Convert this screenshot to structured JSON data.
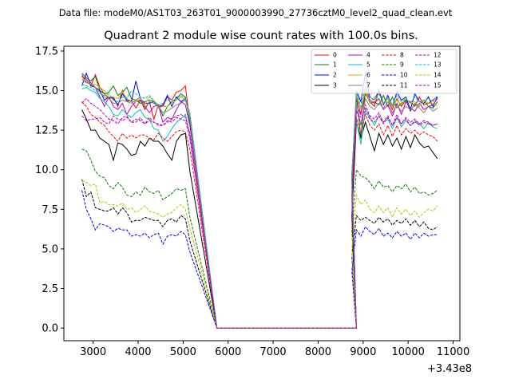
{
  "header": {
    "data_file": "Data file: modeM0/AS1T03_263T01_9000003990_27736cztM0_level2_quad_clean.evt",
    "title": "Quadrant 2 module wise count rates with 100.0s bins."
  },
  "chart_data": {
    "type": "line",
    "title": "Quadrant 2 module wise count rates with 100.0s bins.",
    "xlabel": "",
    "ylabel": "",
    "x_offset_label": "+3.43e8",
    "xlim": [
      2350,
      11150
    ],
    "ylim": [
      -0.8,
      17.8
    ],
    "x_ticks": [
      3000,
      4000,
      5000,
      6000,
      7000,
      8000,
      9000,
      10000,
      11000
    ],
    "y_ticks": [
      0.0,
      2.5,
      5.0,
      7.5,
      10.0,
      12.5,
      15.0,
      17.5
    ],
    "y_tick_labels": [
      "0.0",
      "2.5",
      "5.0",
      "7.5",
      "10.0",
      "12.5",
      "15.0",
      "17.5"
    ],
    "grid": false,
    "legend_position": "top-right",
    "x_start": 2750,
    "x_step": 100,
    "gap_start": 5750,
    "gap_end": 8850,
    "x_end": 10650,
    "series": [
      {
        "name": "0",
        "color": "#ff0000",
        "dashed": false,
        "segA": [
          15.9,
          15.7,
          15.3,
          16.0,
          15.2,
          14.8,
          14.5,
          14.6,
          14.0,
          15.0,
          14.3,
          14.4,
          13.9,
          14.4,
          13.8,
          14.3,
          13.2,
          14.1,
          14.0,
          14.6,
          14.4,
          14.9,
          15.0,
          15.3,
          13.0
        ],
        "segB": [
          9.4,
          14.0,
          13.5,
          14.8,
          14.3,
          14.0,
          15.0,
          14.2,
          14.5,
          13.8,
          14.5,
          14.0,
          14.4,
          14.3,
          14.0,
          14.6,
          14.1,
          14.2,
          14.4,
          14.6
        ]
      },
      {
        "name": "1",
        "color": "#008000",
        "dashed": false,
        "segA": [
          16.1,
          15.8,
          15.6,
          15.9,
          15.0,
          14.8,
          14.9,
          15.3,
          14.7,
          14.9,
          15.2,
          14.5,
          14.4,
          14.2,
          14.3,
          14.4,
          14.3,
          14.1,
          13.4,
          14.0,
          14.3,
          14.5,
          14.8,
          14.6,
          13.0
        ],
        "segB": [
          9.8,
          14.6,
          12.1,
          15.0,
          14.2,
          14.3,
          14.1,
          14.7,
          14.0,
          14.6,
          13.9,
          14.2,
          14.4,
          13.7,
          14.2,
          14.0,
          14.4,
          14.0,
          13.9,
          14.3
        ]
      },
      {
        "name": "2",
        "color": "#0000ff",
        "dashed": false,
        "segA": [
          15.3,
          16.1,
          15.3,
          15.2,
          15.0,
          14.4,
          14.6,
          14.5,
          14.1,
          14.8,
          14.4,
          14.3,
          15.6,
          14.5,
          14.2,
          14.2,
          14.3,
          13.9,
          14.1,
          14.7,
          14.0,
          14.6,
          14.3,
          14.5,
          13.2
        ],
        "segB": [
          9.5,
          15.0,
          14.3,
          16.1,
          14.6,
          14.4,
          15.0,
          14.1,
          14.7,
          14.0,
          14.9,
          14.4,
          14.6,
          13.8,
          14.8,
          14.3,
          14.2,
          14.6,
          14.0,
          14.6
        ]
      },
      {
        "name": "3",
        "color": "#000000",
        "dashed": false,
        "segA": [
          13.8,
          13.2,
          12.5,
          12.5,
          12.0,
          11.8,
          11.6,
          10.6,
          11.7,
          11.6,
          11.3,
          10.9,
          11.0,
          11.8,
          11.5,
          12.0,
          11.8,
          11.8,
          11.5,
          11.0,
          10.6,
          11.8,
          12.2,
          12.3,
          9.9
        ],
        "segB": [
          7.1,
          13.0,
          12.0,
          13.0,
          12.1,
          11.2,
          12.3,
          11.6,
          12.2,
          11.5,
          12.0,
          11.3,
          12.1,
          11.4,
          12.2,
          11.7,
          11.4,
          11.5,
          11.1,
          10.7
        ]
      },
      {
        "name": "4",
        "color": "#bf00bf",
        "dashed": false,
        "segA": [
          16.0,
          15.5,
          15.5,
          15.2,
          14.6,
          14.0,
          14.6,
          14.0,
          13.8,
          14.2,
          13.5,
          14.0,
          14.3,
          14.4,
          14.0,
          13.6,
          14.0,
          14.1,
          13.0,
          13.3,
          13.2,
          13.8,
          14.3,
          14.1,
          12.8
        ],
        "segB": [
          9.7,
          14.6,
          13.5,
          15.2,
          14.4,
          14.2,
          14.5,
          13.8,
          14.1,
          13.4,
          14.2,
          13.5,
          14.3,
          13.9,
          13.7,
          14.2,
          13.8,
          14.0,
          14.1,
          14.5
        ]
      },
      {
        "name": "5",
        "color": "#00bfbf",
        "dashed": false,
        "segA": [
          15.1,
          15.2,
          15.0,
          14.9,
          14.5,
          14.3,
          14.0,
          13.5,
          13.4,
          13.8,
          13.5,
          13.3,
          13.6,
          13.8,
          13.3,
          13.2,
          12.6,
          12.5,
          11.8,
          12.1,
          12.6,
          13.0,
          13.2,
          13.5,
          12.2
        ],
        "segB": [
          8.9,
          13.1,
          11.6,
          13.9,
          13.3,
          12.8,
          13.4,
          13.0,
          13.2,
          12.6,
          13.3,
          12.7,
          13.1,
          12.8,
          13.0,
          12.9,
          12.6,
          13.0,
          12.7,
          12.6
        ]
      },
      {
        "name": "6",
        "color": "#bfbf00",
        "dashed": false,
        "segA": [
          15.8,
          15.6,
          15.4,
          15.4,
          15.2,
          15.0,
          14.6,
          14.6,
          14.5,
          14.9,
          14.5,
          14.3,
          14.3,
          14.5,
          14.1,
          14.6,
          14.4,
          13.9,
          14.0,
          14.0,
          14.2,
          14.4,
          14.6,
          14.4,
          13.3
        ],
        "segB": [
          9.6,
          14.8,
          13.8,
          15.0,
          14.2,
          14.6,
          14.4,
          14.2,
          14.5,
          14.0,
          14.4,
          14.1,
          14.5,
          14.2,
          14.3,
          14.0,
          14.4,
          14.2,
          14.2,
          14.0
        ]
      },
      {
        "name": "7",
        "color": "#808080",
        "dashed": false,
        "segA": [
          15.7,
          15.5,
          15.4,
          15.2,
          14.9,
          14.6,
          14.5,
          14.2,
          14.2,
          14.4,
          14.3,
          14.2,
          14.4,
          14.6,
          13.9,
          14.3,
          14.2,
          14.0,
          13.6,
          13.7,
          13.9,
          14.1,
          14.2,
          14.4,
          13.5
        ],
        "segB": [
          9.4,
          14.2,
          12.8,
          14.5,
          14.0,
          13.8,
          14.2,
          13.9,
          14.3,
          13.6,
          14.1,
          13.7,
          14.0,
          13.8,
          14.1,
          13.9,
          13.6,
          14.0,
          13.7,
          13.9
        ]
      },
      {
        "name": "8",
        "color": "#ff0000",
        "dashed": true,
        "segA": [
          14.3,
          14.0,
          13.5,
          13.3,
          13.0,
          12.8,
          12.4,
          12.1,
          11.8,
          12.3,
          12.0,
          12.2,
          12.0,
          12.2,
          12.2,
          12.0,
          11.9,
          12.3,
          12.0,
          11.8,
          12.1,
          12.4,
          12.5,
          12.4,
          11.3
        ],
        "segB": [
          8.1,
          13.3,
          12.3,
          13.5,
          12.8,
          12.5,
          12.9,
          12.2,
          12.8,
          12.1,
          12.8,
          12.2,
          12.6,
          12.3,
          12.5,
          12.2,
          12.4,
          12.2,
          12.1,
          11.8
        ]
      },
      {
        "name": "9",
        "color": "#008000",
        "dashed": true,
        "segA": [
          11.3,
          11.2,
          10.6,
          9.9,
          9.6,
          9.5,
          9.0,
          8.8,
          9.2,
          8.9,
          8.4,
          8.3,
          8.6,
          8.4,
          8.9,
          8.6,
          8.5,
          8.7,
          8.1,
          8.3,
          8.5,
          8.8,
          8.7,
          8.8,
          7.0
        ],
        "segB": [
          6.2,
          10.0,
          9.6,
          9.5,
          9.2,
          8.8,
          9.3,
          8.9,
          9.0,
          8.6,
          9.0,
          8.8,
          9.1,
          8.6,
          8.9,
          8.5,
          8.6,
          8.4,
          8.5,
          8.7
        ]
      },
      {
        "name": "10",
        "color": "#0000ff",
        "dashed": true,
        "segA": [
          8.7,
          7.5,
          6.9,
          6.2,
          6.6,
          6.5,
          6.4,
          6.1,
          6.3,
          6.2,
          6.2,
          5.8,
          5.9,
          5.8,
          6.0,
          5.7,
          5.9,
          6.0,
          5.3,
          5.8,
          5.9,
          5.8,
          6.1,
          5.9,
          4.8
        ],
        "segB": [
          3.6,
          6.2,
          5.8,
          6.4,
          6.1,
          5.9,
          6.3,
          5.8,
          6.0,
          5.7,
          6.1,
          5.8,
          6.0,
          5.6,
          6.0,
          5.7,
          6.0,
          5.8,
          5.9,
          5.9
        ]
      },
      {
        "name": "11",
        "color": "#000000",
        "dashed": true,
        "segA": [
          9.4,
          8.3,
          8.6,
          7.6,
          7.5,
          7.4,
          7.4,
          7.6,
          7.2,
          7.6,
          7.3,
          6.7,
          6.8,
          6.8,
          7.0,
          6.9,
          6.8,
          6.8,
          6.4,
          6.8,
          6.9,
          6.7,
          7.1,
          6.9,
          5.5
        ],
        "segB": [
          4.5,
          7.1,
          6.8,
          7.0,
          6.8,
          6.6,
          7.0,
          6.7,
          6.9,
          6.5,
          6.8,
          6.6,
          6.9,
          6.5,
          6.8,
          6.4,
          6.7,
          6.3,
          6.2,
          6.4
        ]
      },
      {
        "name": "12",
        "color": "#bf00bf",
        "dashed": true,
        "segA": [
          14.2,
          14.5,
          14.2,
          14.0,
          13.8,
          13.5,
          13.2,
          13.1,
          12.9,
          13.3,
          13.4,
          13.0,
          13.0,
          13.3,
          12.9,
          13.1,
          13.0,
          12.8,
          12.8,
          13.0,
          13.2,
          13.4,
          13.5,
          13.3,
          12.3
        ],
        "segB": [
          8.5,
          13.8,
          12.9,
          14.1,
          13.4,
          13.2,
          13.6,
          13.0,
          13.4,
          12.8,
          13.5,
          12.9,
          13.3,
          13.0,
          13.2,
          12.9,
          13.1,
          13.0,
          12.8,
          12.9
        ]
      },
      {
        "name": "13",
        "color": "#00bfbf",
        "dashed": true,
        "segA": [
          15.4,
          15.3,
          15.2,
          15.0,
          14.8,
          14.7,
          14.8,
          14.4,
          14.3,
          14.6,
          14.5,
          15.0,
          14.8,
          14.6,
          14.5,
          14.7,
          14.3,
          14.1,
          14.2,
          14.4,
          14.3,
          14.5,
          14.7,
          14.5,
          13.6
        ],
        "segB": [
          9.3,
          14.9,
          14.0,
          15.2,
          14.6,
          14.4,
          14.8,
          14.2,
          14.6,
          14.1,
          14.7,
          14.3,
          14.5,
          14.2,
          14.6,
          14.3,
          14.4,
          14.5,
          14.3,
          14.7
        ]
      },
      {
        "name": "14",
        "color": "#bfbf00",
        "dashed": true,
        "segA": [
          9.3,
          9.2,
          9.0,
          9.1,
          7.9,
          8.0,
          7.8,
          7.8,
          7.7,
          7.9,
          7.5,
          7.6,
          7.3,
          7.5,
          7.7,
          7.4,
          7.3,
          7.2,
          7.0,
          7.2,
          7.3,
          7.6,
          7.8,
          7.5,
          6.3
        ],
        "segB": [
          5.0,
          8.4,
          7.8,
          8.1,
          7.5,
          7.3,
          7.7,
          7.3,
          7.6,
          7.0,
          7.6,
          7.2,
          7.5,
          7.1,
          7.4,
          7.0,
          7.3,
          7.5,
          7.4,
          7.7
        ]
      },
      {
        "name": "15",
        "color": "#bf00bf",
        "dashed": true,
        "segA": [
          13.4,
          13.1,
          13.2,
          13.2,
          13.3,
          13.0,
          12.9,
          13.4,
          13.2,
          13.1,
          13.3,
          13.0,
          13.2,
          13.1,
          12.9,
          13.3,
          13.0,
          12.9,
          12.8,
          13.1,
          13.0,
          13.3,
          13.2,
          13.1,
          12.0
        ],
        "segB": [
          8.4,
          13.7,
          13.3,
          13.7,
          13.2,
          13.0,
          13.4,
          12.9,
          13.3,
          12.8,
          13.3,
          12.9,
          13.2,
          12.8,
          13.1,
          12.8,
          13.0,
          12.9,
          12.8,
          12.9
        ]
      }
    ]
  }
}
